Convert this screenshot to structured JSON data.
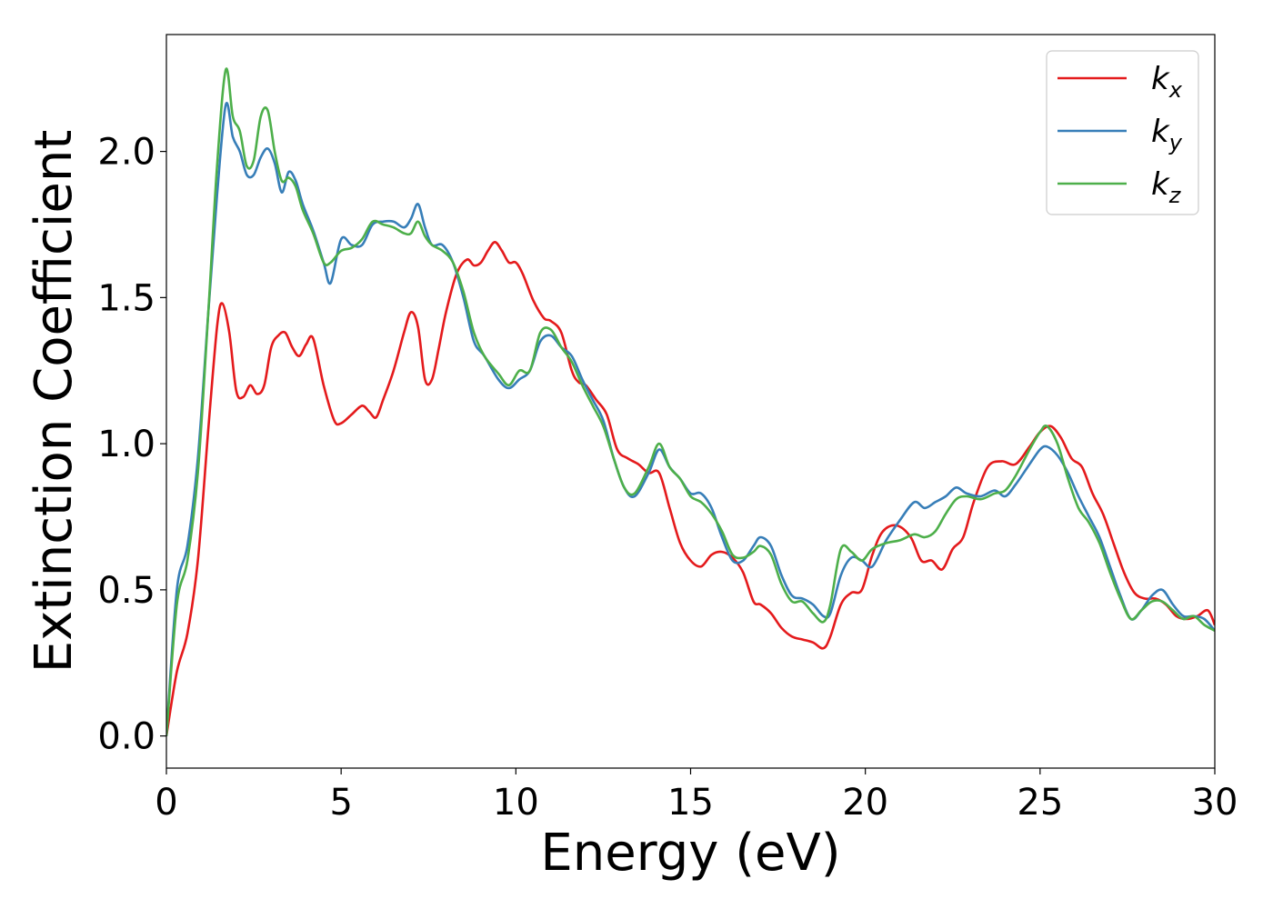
{
  "chart_data": {
    "type": "line",
    "xlabel": "Energy (eV)",
    "ylabel": "Extinction Coefficient",
    "xlim": [
      0,
      30
    ],
    "ylim": [
      -0.11,
      2.4
    ],
    "xticks": [
      0,
      5,
      10,
      15,
      20,
      25,
      30
    ],
    "xtick_labels": [
      "0",
      "5",
      "10",
      "15",
      "20",
      "25",
      "30"
    ],
    "yticks": [
      0.0,
      0.5,
      1.0,
      1.5,
      2.0
    ],
    "ytick_labels": [
      "0.0",
      "0.5",
      "1.0",
      "1.5",
      "2.0"
    ],
    "grid": false,
    "legend_position": "top-right",
    "series": [
      {
        "name": "kx",
        "legend_base": "k",
        "legend_sub": "x",
        "color": "#e41a1c",
        "x": [
          0,
          0.3,
          0.6,
          0.9,
          1.2,
          1.45,
          1.6,
          1.8,
          2.0,
          2.2,
          2.4,
          2.6,
          2.8,
          3.0,
          3.2,
          3.4,
          3.6,
          3.8,
          4.0,
          4.2,
          4.5,
          4.8,
          5.0,
          5.3,
          5.6,
          5.8,
          6.0,
          6.2,
          6.5,
          6.8,
          7.0,
          7.2,
          7.4,
          7.6,
          7.8,
          8.0,
          8.3,
          8.6,
          8.8,
          9.0,
          9.2,
          9.4,
          9.6,
          9.8,
          10.0,
          10.2,
          10.5,
          10.8,
          11.0,
          11.3,
          11.6,
          11.8,
          12.0,
          12.3,
          12.6,
          12.9,
          13.2,
          13.5,
          13.8,
          14.1,
          14.4,
          14.7,
          15.0,
          15.3,
          15.6,
          15.9,
          16.2,
          16.5,
          16.8,
          17.0,
          17.3,
          17.6,
          17.9,
          18.2,
          18.5,
          18.8,
          19.0,
          19.3,
          19.6,
          19.9,
          20.2,
          20.5,
          20.9,
          21.3,
          21.6,
          21.9,
          22.2,
          22.5,
          22.8,
          23.1,
          23.5,
          23.9,
          24.3,
          24.7,
          25.0,
          25.3,
          25.6,
          25.9,
          26.2,
          26.5,
          26.8,
          27.1,
          27.4,
          27.7,
          28.0,
          28.3,
          28.6,
          28.9,
          29.2,
          29.5,
          29.8,
          30.0
        ],
        "y": [
          0.0,
          0.22,
          0.35,
          0.6,
          1.05,
          1.4,
          1.48,
          1.38,
          1.18,
          1.16,
          1.2,
          1.17,
          1.2,
          1.33,
          1.37,
          1.38,
          1.33,
          1.3,
          1.34,
          1.36,
          1.2,
          1.08,
          1.07,
          1.1,
          1.13,
          1.11,
          1.09,
          1.15,
          1.25,
          1.38,
          1.45,
          1.4,
          1.22,
          1.22,
          1.33,
          1.45,
          1.58,
          1.63,
          1.61,
          1.62,
          1.66,
          1.69,
          1.66,
          1.62,
          1.62,
          1.58,
          1.49,
          1.43,
          1.42,
          1.38,
          1.25,
          1.21,
          1.2,
          1.15,
          1.1,
          0.98,
          0.95,
          0.93,
          0.9,
          0.9,
          0.78,
          0.66,
          0.6,
          0.58,
          0.62,
          0.63,
          0.61,
          0.56,
          0.46,
          0.45,
          0.42,
          0.37,
          0.34,
          0.33,
          0.32,
          0.3,
          0.34,
          0.45,
          0.49,
          0.5,
          0.62,
          0.7,
          0.72,
          0.68,
          0.6,
          0.6,
          0.57,
          0.64,
          0.68,
          0.8,
          0.92,
          0.94,
          0.93,
          0.99,
          1.04,
          1.06,
          1.02,
          0.95,
          0.92,
          0.83,
          0.76,
          0.66,
          0.56,
          0.49,
          0.47,
          0.47,
          0.45,
          0.41,
          0.4,
          0.41,
          0.43,
          0.38
        ]
      },
      {
        "name": "ky",
        "legend_base": "k",
        "legend_sub": "y",
        "color": "#377eb8",
        "x": [
          0,
          0.3,
          0.6,
          0.9,
          1.2,
          1.45,
          1.7,
          1.9,
          2.1,
          2.3,
          2.5,
          2.7,
          2.9,
          3.1,
          3.3,
          3.5,
          3.7,
          3.9,
          4.2,
          4.5,
          4.7,
          5.0,
          5.3,
          5.6,
          5.9,
          6.2,
          6.5,
          6.8,
          7.0,
          7.2,
          7.4,
          7.6,
          7.9,
          8.2,
          8.5,
          8.8,
          9.1,
          9.5,
          9.8,
          10.1,
          10.4,
          10.7,
          11.0,
          11.3,
          11.6,
          11.9,
          12.2,
          12.5,
          12.8,
          13.1,
          13.4,
          13.8,
          14.1,
          14.4,
          14.7,
          15.0,
          15.3,
          15.6,
          15.9,
          16.2,
          16.5,
          16.8,
          17.0,
          17.3,
          17.6,
          17.9,
          18.2,
          18.5,
          18.8,
          19.0,
          19.3,
          19.6,
          19.9,
          20.2,
          20.6,
          21.0,
          21.4,
          21.7,
          22.0,
          22.3,
          22.6,
          22.9,
          23.3,
          23.7,
          24.0,
          24.3,
          24.7,
          25.0,
          25.2,
          25.5,
          25.8,
          26.1,
          26.4,
          26.7,
          27.0,
          27.3,
          27.6,
          27.9,
          28.2,
          28.5,
          28.8,
          29.1,
          29.4,
          29.7,
          30.0
        ],
        "y": [
          0.0,
          0.5,
          0.65,
          0.95,
          1.45,
          1.85,
          2.16,
          2.05,
          2.0,
          1.92,
          1.92,
          1.98,
          2.01,
          1.96,
          1.86,
          1.93,
          1.9,
          1.82,
          1.73,
          1.62,
          1.55,
          1.7,
          1.68,
          1.68,
          1.75,
          1.76,
          1.76,
          1.74,
          1.77,
          1.82,
          1.74,
          1.68,
          1.68,
          1.62,
          1.5,
          1.35,
          1.3,
          1.22,
          1.19,
          1.22,
          1.25,
          1.35,
          1.37,
          1.33,
          1.3,
          1.22,
          1.15,
          1.08,
          0.95,
          0.85,
          0.82,
          0.9,
          0.98,
          0.92,
          0.88,
          0.83,
          0.83,
          0.78,
          0.68,
          0.6,
          0.6,
          0.65,
          0.68,
          0.65,
          0.55,
          0.48,
          0.47,
          0.45,
          0.41,
          0.42,
          0.55,
          0.61,
          0.6,
          0.58,
          0.67,
          0.74,
          0.8,
          0.78,
          0.8,
          0.82,
          0.85,
          0.83,
          0.82,
          0.84,
          0.82,
          0.86,
          0.93,
          0.98,
          0.99,
          0.96,
          0.9,
          0.82,
          0.75,
          0.68,
          0.58,
          0.48,
          0.4,
          0.43,
          0.48,
          0.5,
          0.45,
          0.41,
          0.41,
          0.4,
          0.36
        ]
      },
      {
        "name": "kz",
        "legend_base": "k",
        "legend_sub": "z",
        "color": "#4daf4a",
        "x": [
          0,
          0.3,
          0.6,
          0.9,
          1.2,
          1.45,
          1.7,
          1.9,
          2.1,
          2.3,
          2.5,
          2.7,
          2.9,
          3.1,
          3.3,
          3.5,
          3.7,
          3.9,
          4.2,
          4.5,
          4.7,
          5.0,
          5.3,
          5.6,
          5.9,
          6.2,
          6.5,
          6.8,
          7.0,
          7.2,
          7.4,
          7.6,
          7.9,
          8.2,
          8.5,
          8.8,
          9.1,
          9.5,
          9.8,
          10.1,
          10.4,
          10.7,
          11.0,
          11.3,
          11.6,
          11.9,
          12.2,
          12.5,
          12.8,
          13.1,
          13.4,
          13.8,
          14.1,
          14.4,
          14.7,
          15.0,
          15.3,
          15.6,
          15.9,
          16.2,
          16.5,
          16.8,
          17.0,
          17.3,
          17.6,
          17.9,
          18.2,
          18.5,
          18.8,
          19.0,
          19.3,
          19.6,
          19.9,
          20.2,
          20.6,
          21.0,
          21.4,
          21.7,
          22.0,
          22.3,
          22.6,
          22.9,
          23.3,
          23.7,
          24.0,
          24.3,
          24.7,
          25.0,
          25.2,
          25.5,
          25.8,
          26.1,
          26.4,
          26.7,
          27.0,
          27.3,
          27.6,
          27.9,
          28.2,
          28.5,
          28.8,
          29.1,
          29.4,
          29.7,
          30.0
        ],
        "y": [
          0.0,
          0.45,
          0.6,
          0.9,
          1.45,
          1.95,
          2.28,
          2.12,
          2.07,
          1.95,
          1.97,
          2.12,
          2.14,
          2.0,
          1.9,
          1.91,
          1.88,
          1.8,
          1.72,
          1.62,
          1.62,
          1.66,
          1.67,
          1.7,
          1.76,
          1.75,
          1.74,
          1.72,
          1.72,
          1.76,
          1.71,
          1.68,
          1.66,
          1.62,
          1.52,
          1.38,
          1.3,
          1.24,
          1.2,
          1.25,
          1.25,
          1.38,
          1.39,
          1.33,
          1.28,
          1.2,
          1.13,
          1.06,
          0.95,
          0.85,
          0.83,
          0.92,
          1.0,
          0.92,
          0.88,
          0.82,
          0.8,
          0.76,
          0.7,
          0.62,
          0.61,
          0.63,
          0.65,
          0.62,
          0.52,
          0.46,
          0.46,
          0.42,
          0.39,
          0.45,
          0.64,
          0.63,
          0.6,
          0.64,
          0.66,
          0.67,
          0.69,
          0.68,
          0.7,
          0.76,
          0.81,
          0.82,
          0.81,
          0.83,
          0.84,
          0.89,
          0.98,
          1.04,
          1.06,
          1.0,
          0.88,
          0.78,
          0.73,
          0.66,
          0.56,
          0.47,
          0.4,
          0.43,
          0.46,
          0.46,
          0.43,
          0.4,
          0.41,
          0.38,
          0.36
        ]
      }
    ]
  }
}
